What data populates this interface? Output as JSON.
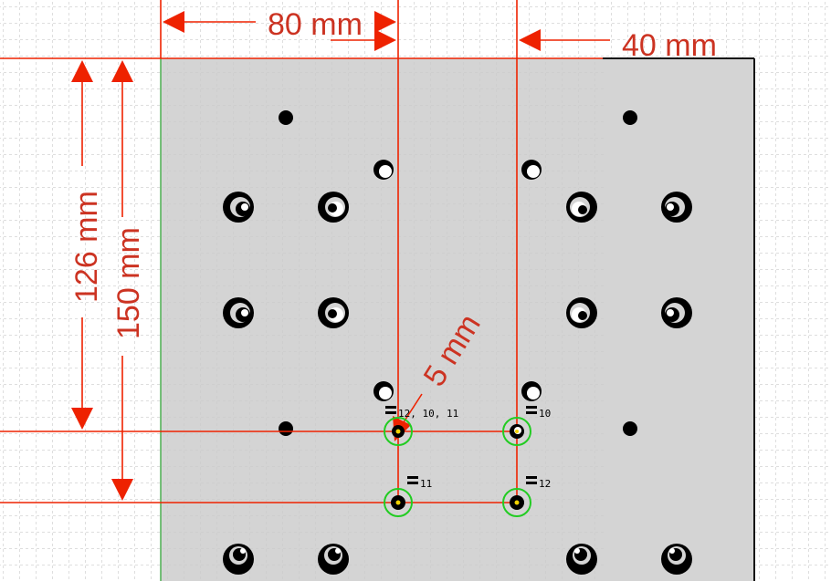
{
  "colors": {
    "background": "#ffffff",
    "grid": "#bbbbbb",
    "plate": "#d4d4d4",
    "plate_border": "#111111",
    "dimension": "#ee2200",
    "dimension_text": "#cc3322",
    "select_ring": "#22cc22",
    "hole": "#000000"
  },
  "dimensions": {
    "horizontal_top": "80 mm",
    "horizontal_right": "40 mm",
    "vertical_inner": "126 mm",
    "vertical_outer": "150 mm",
    "diagonal": "5 mm"
  },
  "constraint_labels": {
    "top_left": "12, 10, 11",
    "top_right": "10",
    "bottom_left": "11",
    "bottom_right": "12"
  }
}
